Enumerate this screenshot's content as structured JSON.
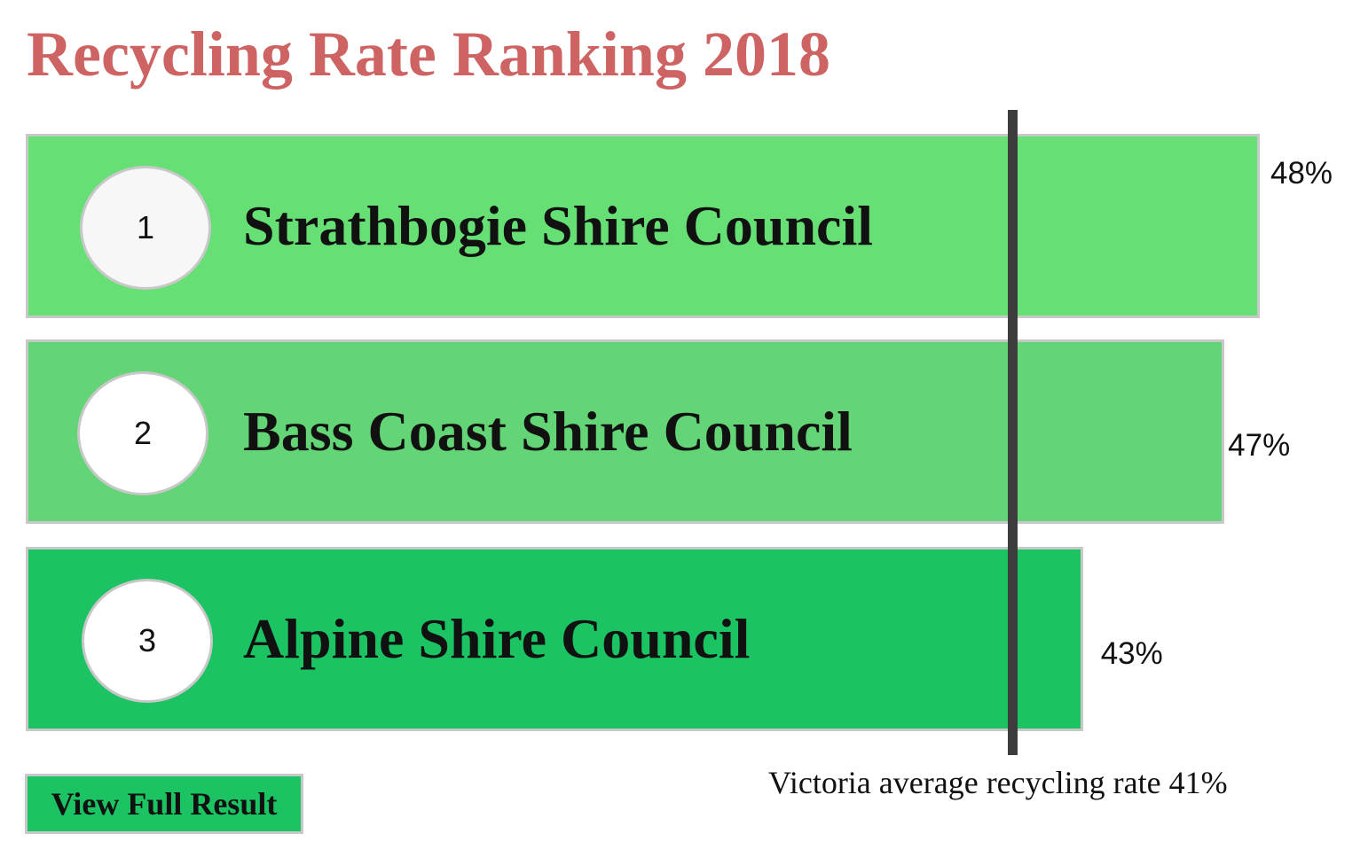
{
  "title": "Recycling Rate Ranking 2018",
  "colors": {
    "title": "#cd6463",
    "button": "#1bc363",
    "average_line": "#3d3d3d"
  },
  "button": {
    "label": "View Full Result"
  },
  "chart_data": {
    "type": "bar",
    "orientation": "horizontal",
    "title": "Recycling Rate Ranking 2018",
    "unit": "%",
    "categories": [
      "Strathbogie Shire Council",
      "Bass Coast Shire Council",
      "Alpine Shire Council"
    ],
    "ranks": [
      "1",
      "2",
      "3"
    ],
    "values": [
      48,
      47,
      43
    ],
    "value_labels": [
      "48%",
      "47%",
      "43%"
    ],
    "bar_colors": [
      "#66e074",
      "#63d576",
      "#1bc363"
    ],
    "reference_line": {
      "value": 41,
      "label": "Victoria average recycling rate 41%"
    },
    "grid": false,
    "legend": "none"
  }
}
